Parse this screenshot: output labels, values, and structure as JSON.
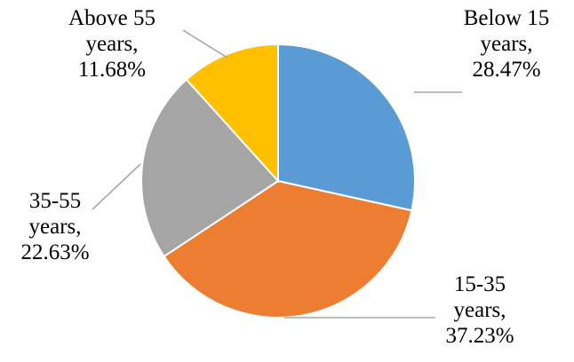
{
  "chart_data": {
    "type": "pie",
    "title": "",
    "slices": [
      {
        "name": "Below 15 years",
        "value": 28.47,
        "label_lines": [
          "Below 15",
          "years,",
          "28.47%"
        ],
        "color": "#5b9bd5"
      },
      {
        "name": "15-35 years",
        "value": 37.23,
        "label_lines": [
          "15-35",
          "years,",
          "37.23%"
        ],
        "color": "#ed7d31"
      },
      {
        "name": "35-55 years",
        "value": 22.63,
        "label_lines": [
          "35-55",
          "years,",
          "22.63%"
        ],
        "color": "#a5a5a5"
      },
      {
        "name": "Above 55 years",
        "value": 11.68,
        "label_lines": [
          "Above 55",
          "years,",
          "11.68%"
        ],
        "color": "#ffc000"
      }
    ],
    "start": "12 o'clock",
    "direction": "clockwise",
    "legend": "none",
    "data_labels": "outside with leader lines"
  }
}
